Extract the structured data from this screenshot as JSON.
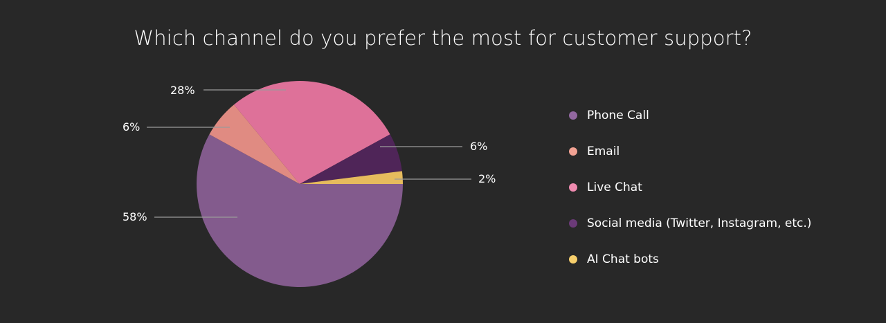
{
  "chart_data": {
    "type": "pie",
    "title": "Which channel do you prefer the most for customer support?",
    "categories": [
      "Phone Call",
      "Email",
      "Live Chat",
      "Social media (Twitter, Instagram, etc.)",
      "AI Chat bots"
    ],
    "values": [
      58,
      6,
      28,
      6,
      2
    ],
    "value_labels": [
      "58%",
      "6%",
      "28%",
      "6%",
      "2%"
    ],
    "colors": [
      "#835b8d",
      "#e08b82",
      "#de7199",
      "#4f2558",
      "#e6bb5d"
    ],
    "legend_colors": [
      "#9268a0",
      "#f2a293",
      "#f08bb0",
      "#6b3a78",
      "#f7cf6c"
    ],
    "legend_position": "right",
    "start_angle": "3 o'clock, clockwise"
  },
  "legend": {
    "items": [
      {
        "label": "Phone Call"
      },
      {
        "label": "Email"
      },
      {
        "label": "Live Chat"
      },
      {
        "label": "Social media (Twitter, Instagram, etc.)"
      },
      {
        "label": "AI Chat bots"
      }
    ]
  }
}
